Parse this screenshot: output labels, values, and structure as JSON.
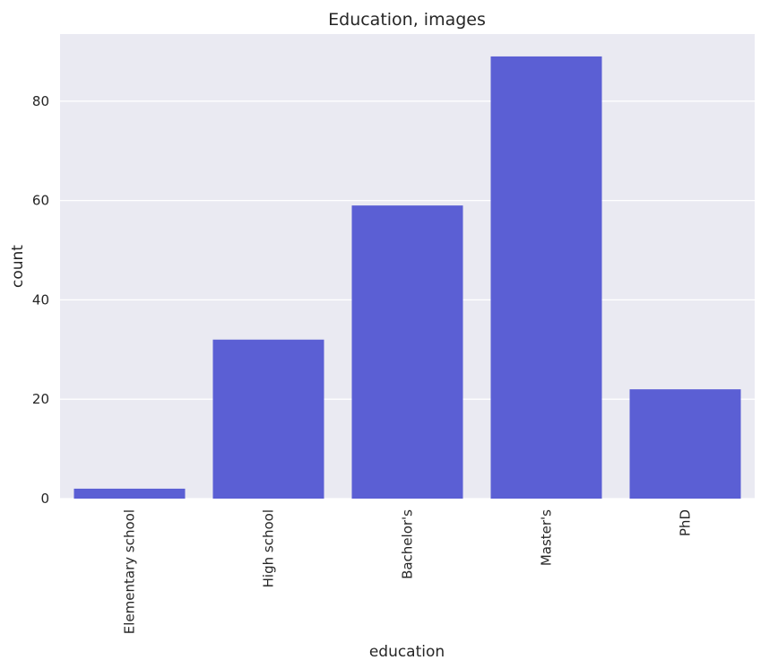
{
  "chart_data": {
    "type": "bar",
    "title": "Education, images",
    "xlabel": "education",
    "ylabel": "count",
    "categories": [
      "Elementary school",
      "High school",
      "Bachelor's",
      "Master's",
      "PhD"
    ],
    "values": [
      2,
      32,
      59,
      89,
      22
    ],
    "ylim": [
      0,
      93.5
    ],
    "yticks": [
      0,
      20,
      40,
      60,
      80
    ],
    "grid": true,
    "colors": {
      "bar": "#5b5fd4",
      "plot_background": "#eaeaf2",
      "grid": "#ffffff"
    }
  }
}
